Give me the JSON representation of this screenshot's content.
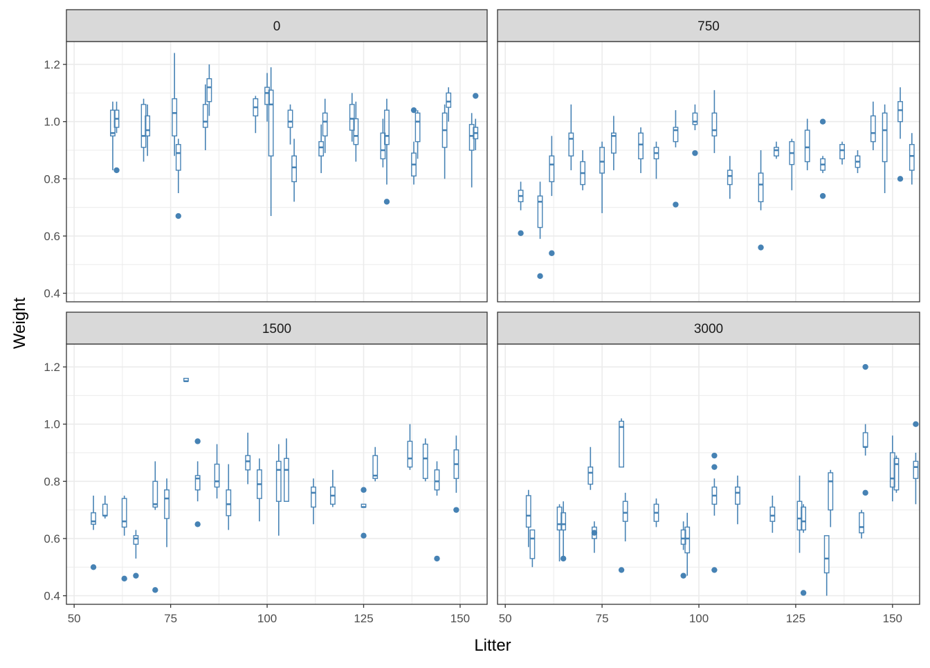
{
  "chart_data": {
    "type": "boxplot-facets",
    "xlabel": "Litter",
    "ylabel": "Weight",
    "xlim": [
      48,
      157
    ],
    "ylim": [
      0.37,
      1.28
    ],
    "x_ticks": [
      50,
      75,
      100,
      125,
      150
    ],
    "y_ticks": [
      0.4,
      0.6,
      0.8,
      1.0,
      1.2
    ],
    "y_tick_labels": [
      "0.4",
      "0.6",
      "0.8",
      "1.0",
      "1.2"
    ],
    "grid": true,
    "color": "#4682B4",
    "panels": [
      {
        "label": "0",
        "boxes": [
          {
            "x": 60,
            "lo": 0.83,
            "q1": 0.95,
            "med": 0.96,
            "q3": 1.04,
            "hi": 1.07
          },
          {
            "x": 61,
            "lo": 0.96,
            "q1": 0.98,
            "med": 1.01,
            "q3": 1.04,
            "hi": 1.07,
            "out": [
              0.83
            ]
          },
          {
            "x": 68,
            "lo": 0.86,
            "q1": 0.91,
            "med": 0.95,
            "q3": 1.06,
            "hi": 1.08
          },
          {
            "x": 69,
            "lo": 0.88,
            "q1": 0.95,
            "med": 0.97,
            "q3": 1.02,
            "hi": 1.06
          },
          {
            "x": 76,
            "lo": 0.88,
            "q1": 0.95,
            "med": 1.03,
            "q3": 1.08,
            "hi": 1.24
          },
          {
            "x": 77,
            "lo": 0.75,
            "q1": 0.83,
            "med": 0.89,
            "q3": 0.92,
            "hi": 0.94,
            "out": [
              0.67
            ]
          },
          {
            "x": 84,
            "lo": 0.9,
            "q1": 0.98,
            "med": 1.0,
            "q3": 1.06,
            "hi": 1.13
          },
          {
            "x": 85,
            "lo": 1.02,
            "q1": 1.07,
            "med": 1.12,
            "q3": 1.15,
            "hi": 1.2
          },
          {
            "x": 97,
            "lo": 0.96,
            "q1": 1.02,
            "med": 1.05,
            "q3": 1.08,
            "hi": 1.09
          },
          {
            "x": 100,
            "lo": 1.0,
            "q1": 1.06,
            "med": 1.1,
            "q3": 1.12,
            "hi": 1.17
          },
          {
            "x": 101,
            "lo": 0.67,
            "q1": 0.88,
            "med": 1.06,
            "q3": 1.11,
            "hi": 1.19
          },
          {
            "x": 106,
            "lo": 0.92,
            "q1": 0.98,
            "med": 1.0,
            "q3": 1.04,
            "hi": 1.06
          },
          {
            "x": 107,
            "lo": 0.72,
            "q1": 0.79,
            "med": 0.84,
            "q3": 0.88,
            "hi": 0.94
          },
          {
            "x": 114,
            "lo": 0.82,
            "q1": 0.88,
            "med": 0.91,
            "q3": 0.93,
            "hi": 0.99
          },
          {
            "x": 115,
            "lo": 0.89,
            "q1": 0.95,
            "med": 1.0,
            "q3": 1.03,
            "hi": 1.08
          },
          {
            "x": 122,
            "lo": 0.93,
            "q1": 0.97,
            "med": 1.01,
            "q3": 1.06,
            "hi": 1.1
          },
          {
            "x": 123,
            "lo": 0.86,
            "q1": 0.92,
            "med": 0.95,
            "q3": 1.01,
            "hi": 1.07
          },
          {
            "x": 130,
            "lo": 0.84,
            "q1": 0.87,
            "med": 0.9,
            "q3": 0.96,
            "hi": 1.01
          },
          {
            "x": 131,
            "lo": 0.78,
            "q1": 0.92,
            "med": 0.95,
            "q3": 1.04,
            "hi": 1.08,
            "out": [
              0.72
            ]
          },
          {
            "x": 138,
            "lo": 0.78,
            "q1": 0.81,
            "med": 0.85,
            "q3": 0.89,
            "hi": 0.93,
            "out": [
              1.04
            ]
          },
          {
            "x": 139,
            "lo": 0.87,
            "q1": 0.93,
            "med": 1.0,
            "q3": 1.03,
            "hi": 1.04
          },
          {
            "x": 146,
            "lo": 0.8,
            "q1": 0.91,
            "med": 0.97,
            "q3": 1.03,
            "hi": 1.06
          },
          {
            "x": 147,
            "lo": 1.0,
            "q1": 1.05,
            "med": 1.07,
            "q3": 1.1,
            "hi": 1.12
          },
          {
            "x": 153,
            "lo": 0.77,
            "q1": 0.9,
            "med": 0.95,
            "q3": 0.99,
            "hi": 1.03
          },
          {
            "x": 154,
            "lo": 0.9,
            "q1": 0.94,
            "med": 0.96,
            "q3": 0.98,
            "hi": 1.01,
            "out": [
              1.09
            ]
          }
        ]
      },
      {
        "label": "750",
        "boxes": [
          {
            "x": 54,
            "lo": 0.69,
            "q1": 0.72,
            "med": 0.74,
            "q3": 0.76,
            "hi": 0.79,
            "out": [
              0.61
            ]
          },
          {
            "x": 59,
            "lo": 0.59,
            "q1": 0.63,
            "med": 0.72,
            "q3": 0.74,
            "hi": 0.79,
            "out": [
              0.46
            ]
          },
          {
            "x": 62,
            "lo": 0.74,
            "q1": 0.79,
            "med": 0.85,
            "q3": 0.88,
            "hi": 0.95,
            "out": [
              0.54
            ]
          },
          {
            "x": 67,
            "lo": 0.83,
            "q1": 0.88,
            "med": 0.94,
            "q3": 0.96,
            "hi": 1.06
          },
          {
            "x": 70,
            "lo": 0.76,
            "q1": 0.78,
            "med": 0.82,
            "q3": 0.86,
            "hi": 0.9
          },
          {
            "x": 75,
            "lo": 0.68,
            "q1": 0.82,
            "med": 0.86,
            "q3": 0.91,
            "hi": 0.93
          },
          {
            "x": 78,
            "lo": 0.83,
            "q1": 0.89,
            "med": 0.95,
            "q3": 0.96,
            "hi": 1.02
          },
          {
            "x": 85,
            "lo": 0.82,
            "q1": 0.87,
            "med": 0.92,
            "q3": 0.96,
            "hi": 0.98
          },
          {
            "x": 89,
            "lo": 0.8,
            "q1": 0.87,
            "med": 0.89,
            "q3": 0.91,
            "hi": 0.93
          },
          {
            "x": 94,
            "lo": 0.91,
            "q1": 0.93,
            "med": 0.97,
            "q3": 0.98,
            "hi": 1.04,
            "out": [
              0.71
            ]
          },
          {
            "x": 99,
            "lo": 0.97,
            "q1": 0.99,
            "med": 1.0,
            "q3": 1.03,
            "hi": 1.06,
            "out": [
              0.89
            ]
          },
          {
            "x": 104,
            "lo": 0.89,
            "q1": 0.95,
            "med": 0.97,
            "q3": 1.03,
            "hi": 1.11
          },
          {
            "x": 108,
            "lo": 0.73,
            "q1": 0.78,
            "med": 0.81,
            "q3": 0.83,
            "hi": 0.88
          },
          {
            "x": 116,
            "lo": 0.69,
            "q1": 0.72,
            "med": 0.78,
            "q3": 0.82,
            "hi": 0.9,
            "out": [
              0.56
            ]
          },
          {
            "x": 120,
            "lo": 0.87,
            "q1": 0.88,
            "med": 0.9,
            "q3": 0.91,
            "hi": 0.93
          },
          {
            "x": 124,
            "lo": 0.76,
            "q1": 0.85,
            "med": 0.89,
            "q3": 0.93,
            "hi": 0.94
          },
          {
            "x": 128,
            "lo": 0.83,
            "q1": 0.86,
            "med": 0.91,
            "q3": 0.97,
            "hi": 1.01
          },
          {
            "x": 132,
            "lo": 0.82,
            "q1": 0.83,
            "med": 0.85,
            "q3": 0.87,
            "hi": 0.88,
            "out": [
              0.74,
              1.0
            ]
          },
          {
            "x": 137,
            "lo": 0.85,
            "q1": 0.87,
            "med": 0.9,
            "q3": 0.92,
            "hi": 0.93
          },
          {
            "x": 141,
            "lo": 0.82,
            "q1": 0.84,
            "med": 0.86,
            "q3": 0.88,
            "hi": 0.9
          },
          {
            "x": 145,
            "lo": 0.9,
            "q1": 0.93,
            "med": 0.96,
            "q3": 1.02,
            "hi": 1.07
          },
          {
            "x": 148,
            "lo": 0.75,
            "q1": 0.86,
            "med": 0.97,
            "q3": 1.03,
            "hi": 1.06
          },
          {
            "x": 152,
            "lo": 0.94,
            "q1": 1.0,
            "med": 1.04,
            "q3": 1.07,
            "hi": 1.12,
            "out": [
              0.8
            ]
          },
          {
            "x": 155,
            "lo": 0.78,
            "q1": 0.83,
            "med": 0.88,
            "q3": 0.92,
            "hi": 0.96
          }
        ]
      },
      {
        "label": "1500",
        "boxes": [
          {
            "x": 55,
            "lo": 0.63,
            "q1": 0.65,
            "med": 0.66,
            "q3": 0.69,
            "hi": 0.75,
            "out": [
              0.5
            ]
          },
          {
            "x": 58,
            "lo": 0.67,
            "q1": 0.68,
            "med": 0.68,
            "q3": 0.72,
            "hi": 0.75
          },
          {
            "x": 63,
            "lo": 0.61,
            "q1": 0.64,
            "med": 0.66,
            "q3": 0.74,
            "hi": 0.75,
            "out": [
              0.46
            ]
          },
          {
            "x": 66,
            "lo": 0.53,
            "q1": 0.58,
            "med": 0.6,
            "q3": 0.61,
            "hi": 0.63,
            "out": [
              0.47
            ]
          },
          {
            "x": 71,
            "lo": 0.7,
            "q1": 0.71,
            "med": 0.72,
            "q3": 0.8,
            "hi": 0.87,
            "out": [
              0.42
            ]
          },
          {
            "x": 74,
            "lo": 0.57,
            "q1": 0.67,
            "med": 0.74,
            "q3": 0.77,
            "hi": 0.81
          },
          {
            "x": 79,
            "lo": 1.15,
            "q1": 1.15,
            "med": 1.15,
            "q3": 1.16,
            "hi": 1.16
          },
          {
            "x": 82,
            "lo": 0.73,
            "q1": 0.77,
            "med": 0.81,
            "q3": 0.82,
            "hi": 0.87,
            "out": [
              0.65,
              0.94
            ]
          },
          {
            "x": 87,
            "lo": 0.74,
            "q1": 0.78,
            "med": 0.8,
            "q3": 0.86,
            "hi": 0.93
          },
          {
            "x": 90,
            "lo": 0.63,
            "q1": 0.68,
            "med": 0.72,
            "q3": 0.77,
            "hi": 0.86
          },
          {
            "x": 95,
            "lo": 0.79,
            "q1": 0.84,
            "med": 0.87,
            "q3": 0.89,
            "hi": 0.97
          },
          {
            "x": 98,
            "lo": 0.66,
            "q1": 0.74,
            "med": 0.79,
            "q3": 0.84,
            "hi": 0.88
          },
          {
            "x": 103,
            "lo": 0.61,
            "q1": 0.73,
            "med": 0.84,
            "q3": 0.87,
            "hi": 0.93
          },
          {
            "x": 105,
            "lo": 0.73,
            "q1": 0.73,
            "med": 0.84,
            "q3": 0.88,
            "hi": 0.95
          },
          {
            "x": 112,
            "lo": 0.65,
            "q1": 0.71,
            "med": 0.76,
            "q3": 0.78,
            "hi": 0.81
          },
          {
            "x": 117,
            "lo": 0.71,
            "q1": 0.72,
            "med": 0.75,
            "q3": 0.78,
            "hi": 0.84
          },
          {
            "x": 125,
            "lo": 0.71,
            "q1": 0.71,
            "med": 0.71,
            "q3": 0.72,
            "hi": 0.72,
            "out": [
              0.61,
              0.77
            ]
          },
          {
            "x": 128,
            "lo": 0.8,
            "q1": 0.81,
            "med": 0.82,
            "q3": 0.89,
            "hi": 0.92
          },
          {
            "x": 137,
            "lo": 0.84,
            "q1": 0.85,
            "med": 0.88,
            "q3": 0.94,
            "hi": 1.0
          },
          {
            "x": 141,
            "lo": 0.8,
            "q1": 0.81,
            "med": 0.88,
            "q3": 0.93,
            "hi": 0.95
          },
          {
            "x": 144,
            "lo": 0.75,
            "q1": 0.77,
            "med": 0.8,
            "q3": 0.84,
            "hi": 0.87,
            "out": [
              0.53
            ]
          },
          {
            "x": 149,
            "lo": 0.76,
            "q1": 0.81,
            "med": 0.86,
            "q3": 0.91,
            "hi": 0.96,
            "out": [
              0.7
            ]
          }
        ]
      },
      {
        "label": "3000",
        "boxes": [
          {
            "x": 56,
            "lo": 0.57,
            "q1": 0.64,
            "med": 0.68,
            "q3": 0.75,
            "hi": 0.77
          },
          {
            "x": 57,
            "lo": 0.5,
            "q1": 0.53,
            "med": 0.6,
            "q3": 0.63,
            "hi": 0.63
          },
          {
            "x": 64,
            "lo": 0.52,
            "q1": 0.63,
            "med": 0.65,
            "q3": 0.71,
            "hi": 0.72
          },
          {
            "x": 65,
            "lo": 0.53,
            "q1": 0.63,
            "med": 0.65,
            "q3": 0.69,
            "hi": 0.73,
            "out": [
              0.53
            ]
          },
          {
            "x": 72,
            "lo": 0.77,
            "q1": 0.79,
            "med": 0.83,
            "q3": 0.85,
            "hi": 0.92
          },
          {
            "x": 73,
            "lo": 0.55,
            "q1": 0.6,
            "med": 0.62,
            "q3": 0.64,
            "hi": 0.66,
            "out": [
              0.62
            ]
          },
          {
            "x": 80,
            "lo": 0.85,
            "q1": 0.85,
            "med": 0.99,
            "q3": 1.01,
            "hi": 1.02,
            "out": [
              0.49
            ]
          },
          {
            "x": 81,
            "lo": 0.59,
            "q1": 0.66,
            "med": 0.69,
            "q3": 0.73,
            "hi": 0.76
          },
          {
            "x": 89,
            "lo": 0.64,
            "q1": 0.66,
            "med": 0.69,
            "q3": 0.72,
            "hi": 0.74
          },
          {
            "x": 96,
            "lo": 0.56,
            "q1": 0.58,
            "med": 0.6,
            "q3": 0.63,
            "hi": 0.66,
            "out": [
              0.47
            ]
          },
          {
            "x": 97,
            "lo": 0.47,
            "q1": 0.55,
            "med": 0.6,
            "q3": 0.64,
            "hi": 0.69
          },
          {
            "x": 104,
            "lo": 0.68,
            "q1": 0.72,
            "med": 0.75,
            "q3": 0.78,
            "hi": 0.81,
            "out": [
              0.49,
              0.85,
              0.89
            ]
          },
          {
            "x": 110,
            "lo": 0.65,
            "q1": 0.72,
            "med": 0.76,
            "q3": 0.78,
            "hi": 0.82
          },
          {
            "x": 119,
            "lo": 0.62,
            "q1": 0.66,
            "med": 0.68,
            "q3": 0.71,
            "hi": 0.75
          },
          {
            "x": 126,
            "lo": 0.55,
            "q1": 0.63,
            "med": 0.67,
            "q3": 0.73,
            "hi": 0.82
          },
          {
            "x": 127,
            "lo": 0.62,
            "q1": 0.63,
            "med": 0.66,
            "q3": 0.71,
            "hi": 0.72,
            "out": [
              0.41
            ]
          },
          {
            "x": 133,
            "lo": 0.4,
            "q1": 0.48,
            "med": 0.53,
            "q3": 0.61,
            "hi": 0.61
          },
          {
            "x": 134,
            "lo": 0.64,
            "q1": 0.7,
            "med": 0.8,
            "q3": 0.83,
            "hi": 0.84
          },
          {
            "x": 142,
            "lo": 0.6,
            "q1": 0.62,
            "med": 0.64,
            "q3": 0.69,
            "hi": 0.7
          },
          {
            "x": 143,
            "lo": 0.89,
            "q1": 0.92,
            "med": 0.92,
            "q3": 0.97,
            "hi": 1.0,
            "out": [
              0.76,
              1.2
            ]
          },
          {
            "x": 150,
            "lo": 0.73,
            "q1": 0.78,
            "med": 0.81,
            "q3": 0.9,
            "hi": 0.96
          },
          {
            "x": 151,
            "lo": 0.76,
            "q1": 0.77,
            "med": 0.86,
            "q3": 0.88,
            "hi": 0.89
          },
          {
            "x": 156,
            "lo": 0.72,
            "q1": 0.81,
            "med": 0.85,
            "q3": 0.87,
            "hi": 0.9,
            "out": [
              1.0
            ]
          }
        ]
      }
    ]
  }
}
